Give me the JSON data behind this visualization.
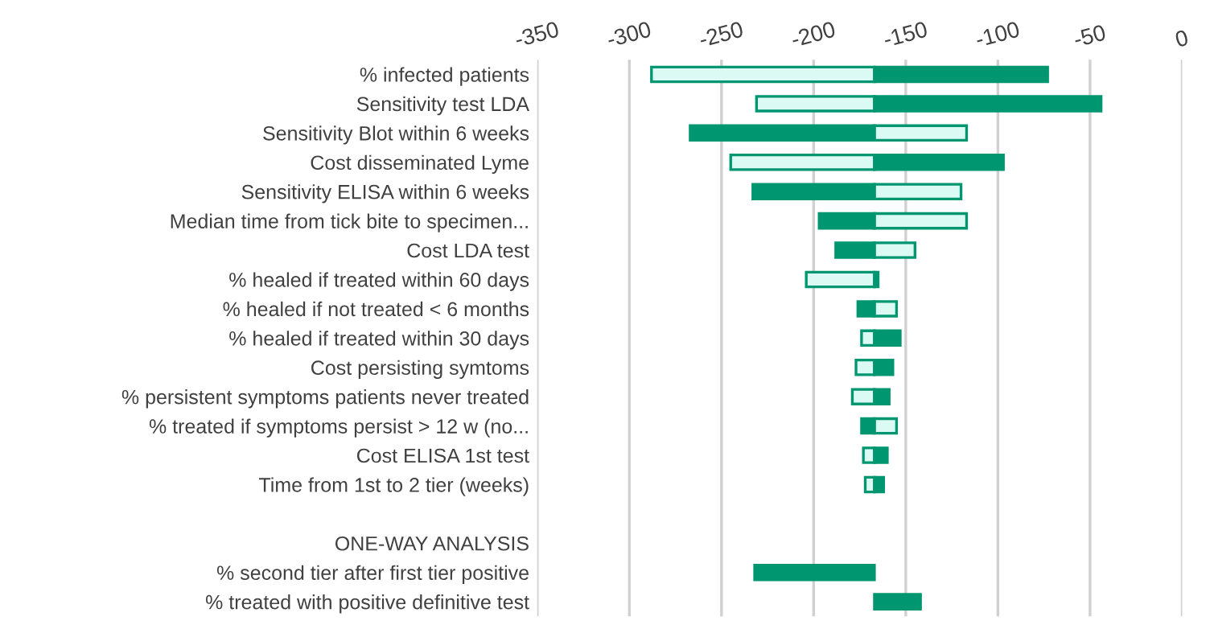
{
  "chart_data": {
    "type": "bar",
    "orientation": "horizontal",
    "categories": [
      "% infected patients",
      "Sensitivity test LDA",
      "Sensitivity Blot within 6 weeks",
      "Cost disseminated Lyme",
      "Sensitivity ELISA within 6 weeks",
      "Median time from tick bite to specimen...",
      "Cost LDA test",
      "% healed if treated within 60 days",
      "% healed if not treated < 6 months",
      "% healed if treated within 30 days",
      "Cost persisting symtoms",
      "% persistent symptoms patients never treated",
      "% treated if symptoms persist > 12 w (no...",
      "Cost ELISA 1st test",
      "Time from 1st to 2 tier (weeks)",
      null,
      "ONE-WAY ANALYSIS",
      "% second tier after first tier positive",
      "% treated with positive definitive test"
    ],
    "series": [
      {
        "color": "#dcfaf4",
        "base": [
          -167,
          -167,
          -167,
          -167,
          -167,
          -167,
          -167,
          -167,
          -167,
          -167,
          -167,
          -167,
          -167,
          -167,
          -167,
          null,
          null,
          null,
          null
        ],
        "values": [
          -121,
          -64,
          50,
          -78,
          47,
          50,
          22,
          -37,
          12,
          -7,
          -10,
          -12,
          12,
          -6,
          -5,
          null,
          null,
          null,
          null
        ]
      },
      {
        "color": "#009670",
        "base": [
          -167,
          -167,
          -167,
          -167,
          -167,
          -167,
          -167,
          -167,
          -167,
          -167,
          -167,
          -167,
          -167,
          -167,
          -167,
          null,
          null,
          -167,
          -167
        ],
        "values": [
          94,
          123,
          -100,
          70,
          -66,
          -30,
          -21,
          2,
          -9,
          14,
          10,
          8,
          -7,
          7,
          5,
          null,
          null,
          -65,
          25
        ]
      }
    ],
    "xlim": [
      -350,
      0
    ],
    "xticks": [
      -350,
      -300,
      -250,
      -200,
      -150,
      -100,
      -50,
      0
    ],
    "grid": "x",
    "legend": false
  }
}
